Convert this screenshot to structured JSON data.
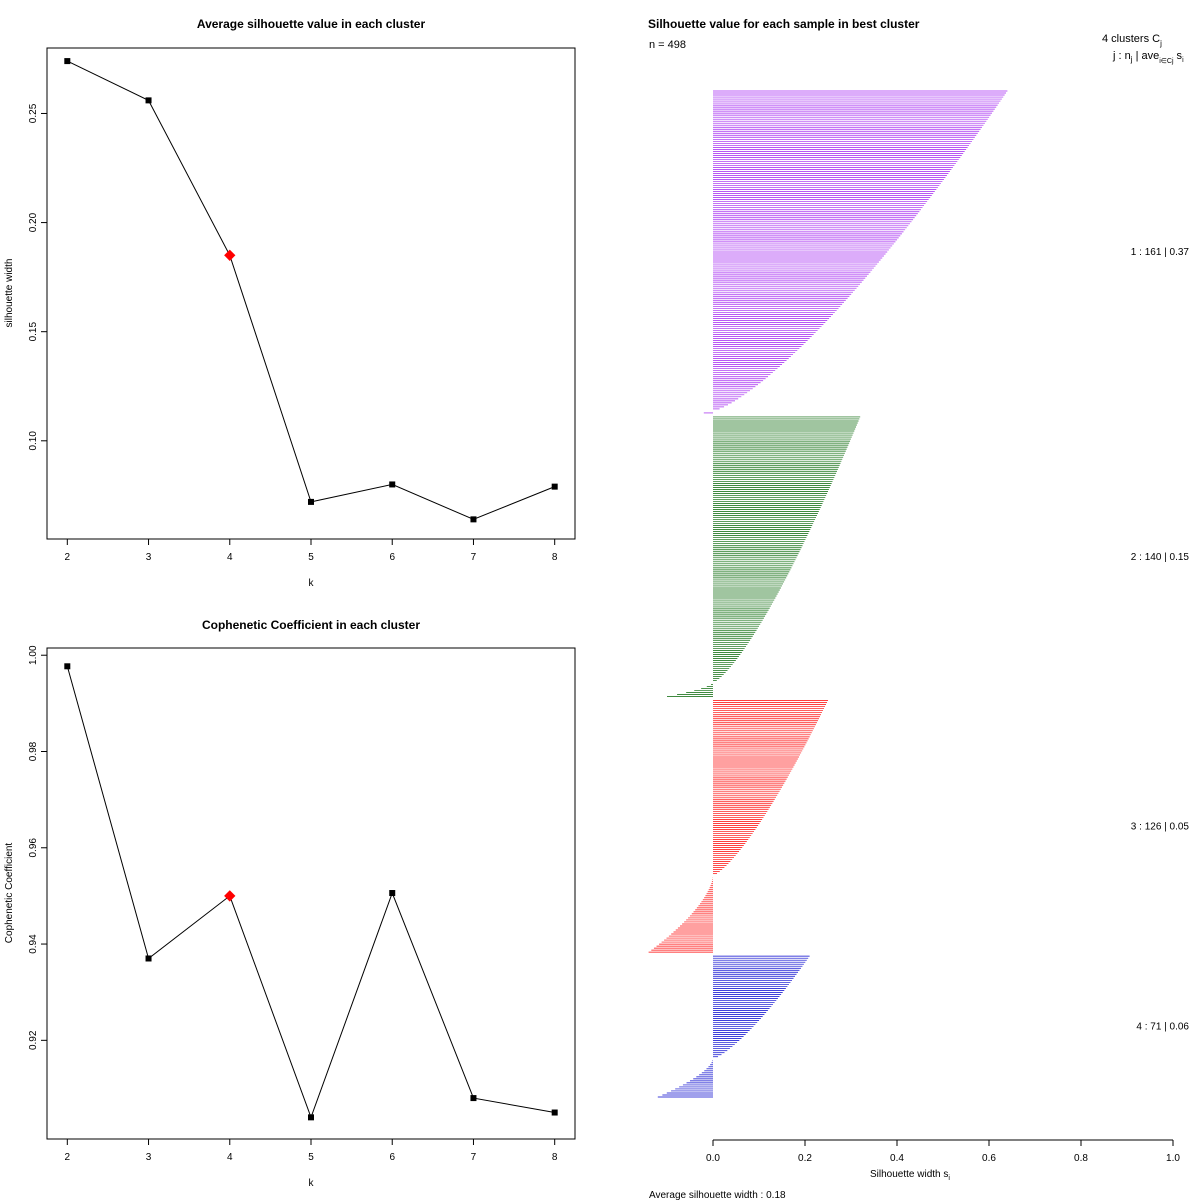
{
  "chart_data": [
    {
      "type": "line",
      "title": "Average silhouette value in each cluster",
      "xlabel": "k",
      "ylabel": "silhouette width",
      "x": [
        2,
        3,
        4,
        5,
        6,
        7,
        8
      ],
      "values": [
        0.274,
        0.256,
        0.185,
        0.072,
        0.08,
        0.064,
        0.079
      ],
      "highlight_k": 4,
      "xlim": [
        1.75,
        8.25
      ],
      "ylim": [
        0.055,
        0.28
      ],
      "xticks": [
        "2",
        "3",
        "4",
        "5",
        "6",
        "7",
        "8"
      ],
      "yticks": [
        "0.10",
        "0.15",
        "0.20",
        "0.25"
      ],
      "ytick_values": [
        0.1,
        0.15,
        0.2,
        0.25
      ],
      "highlight_color": "#ff0000",
      "color": "#000000"
    },
    {
      "type": "line",
      "title": "Cophenetic Coefficient in each cluster",
      "xlabel": "k",
      "ylabel": "Cophenetic Coefficient",
      "x": [
        2,
        3,
        4,
        5,
        6,
        7,
        8
      ],
      "values": [
        0.9977,
        0.937,
        0.95,
        0.904,
        0.9506,
        0.908,
        0.905
      ],
      "highlight_k": 4,
      "xlim": [
        1.75,
        8.25
      ],
      "ylim": [
        0.8995,
        1.0015
      ],
      "xticks": [
        "2",
        "3",
        "4",
        "5",
        "6",
        "7",
        "8"
      ],
      "yticks": [
        "0.92",
        "0.94",
        "0.96",
        "0.98",
        "1.00"
      ],
      "ytick_values": [
        0.92,
        0.94,
        0.96,
        0.98,
        1.0
      ],
      "highlight_color": "#ff0000",
      "color": "#000000"
    },
    {
      "type": "bar",
      "orientation": "horizontal",
      "title": "Silhouette value for each sample in best cluster",
      "n_label": "n = 498",
      "header_line1": "4  clusters  C",
      "header_line1_sub": "j",
      "header_line2": "j :  n",
      "header_line2_sub": "j",
      "header_line2_tail": " | ave",
      "header_line2_sub2": "i∈Cj",
      "header_line2_end": " s",
      "header_line2_sub3": "i",
      "xlabel": "Silhouette width s",
      "xlabel_sub": "i",
      "xlim": [
        0,
        1
      ],
      "xticks": [
        "0.0",
        "0.2",
        "0.4",
        "0.6",
        "0.8",
        "1.0"
      ],
      "xtick_values": [
        0,
        0.2,
        0.4,
        0.6,
        0.8,
        1.0
      ],
      "average_label": "Average silhouette width :  0.18",
      "average": 0.18,
      "clusters": [
        {
          "id": 1,
          "n": 161,
          "avg": 0.37,
          "label": "1 :   161  |  0.37",
          "color": "#a020f0",
          "max": 0.64,
          "min": -0.02,
          "neg_count": 1
        },
        {
          "id": 2,
          "n": 140,
          "avg": 0.15,
          "label": "2 :   140  |  0.15",
          "color": "#006400",
          "max": 0.32,
          "min": -0.1,
          "neg_count": 7
        },
        {
          "id": 3,
          "n": 126,
          "avg": 0.05,
          "label": "3 :   126  |  0.05",
          "color": "#ff0000",
          "max": 0.25,
          "min": -0.14,
          "neg_count": 38
        },
        {
          "id": 4,
          "n": 71,
          "avg": 0.06,
          "label": "4 :   71  |  0.06",
          "color": "#0000cd",
          "max": 0.21,
          "min": -0.12,
          "neg_count": 19
        }
      ]
    }
  ]
}
